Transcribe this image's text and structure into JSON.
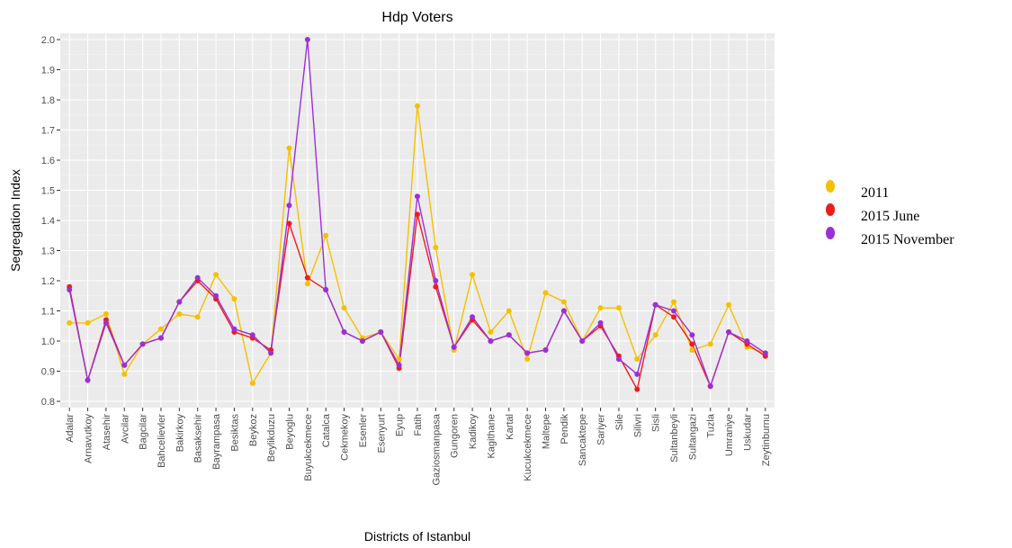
{
  "chart_data": {
    "type": "line",
    "title": "Hdp Voters",
    "xlabel": "Districts of Istanbul",
    "ylabel": "Segregation Index",
    "ylim": [
      0.8,
      2.0
    ],
    "yticks": [
      "0.8",
      "0.9",
      "1.0",
      "1.1",
      "1.2",
      "1.3",
      "1.4",
      "1.5",
      "1.6",
      "1.7",
      "1.8",
      "1.9",
      "2.0"
    ],
    "grid": true,
    "legend_position": "right",
    "categories": [
      "Adalar",
      "Arnavutkoy",
      "Atasehir",
      "Avcilar",
      "Bagcilar",
      "Bahcelievler",
      "Bakirkoy",
      "Basaksehir",
      "Bayrampasa",
      "Besiktas",
      "Beykoz",
      "Beylikduzu",
      "Beyoglu",
      "Buyukcekmece",
      "Catalca",
      "Cekmekoy",
      "Esenler",
      "Esenyurt",
      "Eyup",
      "Fatih",
      "Gaziosmanpasa",
      "Gungoren",
      "Kadikoy",
      "Kagithane",
      "Kartal",
      "Kucukcekmece",
      "Maltepe",
      "Pendik",
      "Sancaktepe",
      "Sariyer",
      "Sile",
      "Silivri",
      "Sisli",
      "Sultanbeyli",
      "Sultangazi",
      "Tuzla",
      "Umraniye",
      "Uskudar",
      "Zeytinburnu"
    ],
    "series": [
      {
        "name": "2011",
        "color": "#f5c000",
        "values": [
          1.06,
          1.06,
          1.09,
          0.89,
          0.99,
          1.04,
          1.09,
          1.08,
          1.22,
          1.14,
          0.86,
          0.96,
          1.64,
          1.19,
          1.35,
          1.11,
          1.01,
          1.03,
          0.94,
          1.78,
          1.31,
          0.97,
          1.22,
          1.03,
          1.1,
          0.94,
          1.16,
          1.13,
          1.0,
          1.11,
          1.11,
          0.94,
          1.02,
          1.13,
          0.97,
          0.99,
          1.12,
          0.98,
          0.96
        ]
      },
      {
        "name": "2015 June",
        "color": "#ee1c1c",
        "values": [
          1.18,
          0.87,
          1.07,
          0.92,
          0.99,
          1.01,
          1.13,
          1.2,
          1.14,
          1.03,
          1.01,
          0.97,
          1.39,
          1.21,
          1.17,
          1.03,
          1.0,
          1.03,
          0.91,
          1.42,
          1.18,
          0.98,
          1.07,
          1.0,
          1.02,
          0.96,
          0.97,
          1.1,
          1.0,
          1.05,
          0.95,
          0.84,
          1.12,
          1.08,
          0.99,
          0.85,
          1.03,
          0.99,
          0.95
        ]
      },
      {
        "name": "2015 November",
        "color": "#9b30d9",
        "values": [
          1.17,
          0.87,
          1.06,
          0.92,
          0.99,
          1.01,
          1.13,
          1.21,
          1.15,
          1.04,
          1.02,
          0.96,
          1.45,
          2.0,
          1.17,
          1.03,
          1.0,
          1.03,
          0.92,
          1.48,
          1.2,
          0.98,
          1.08,
          1.0,
          1.02,
          0.96,
          0.97,
          1.1,
          1.0,
          1.06,
          0.94,
          0.89,
          1.12,
          1.1,
          1.02,
          0.85,
          1.03,
          1.0,
          0.96
        ]
      }
    ]
  }
}
